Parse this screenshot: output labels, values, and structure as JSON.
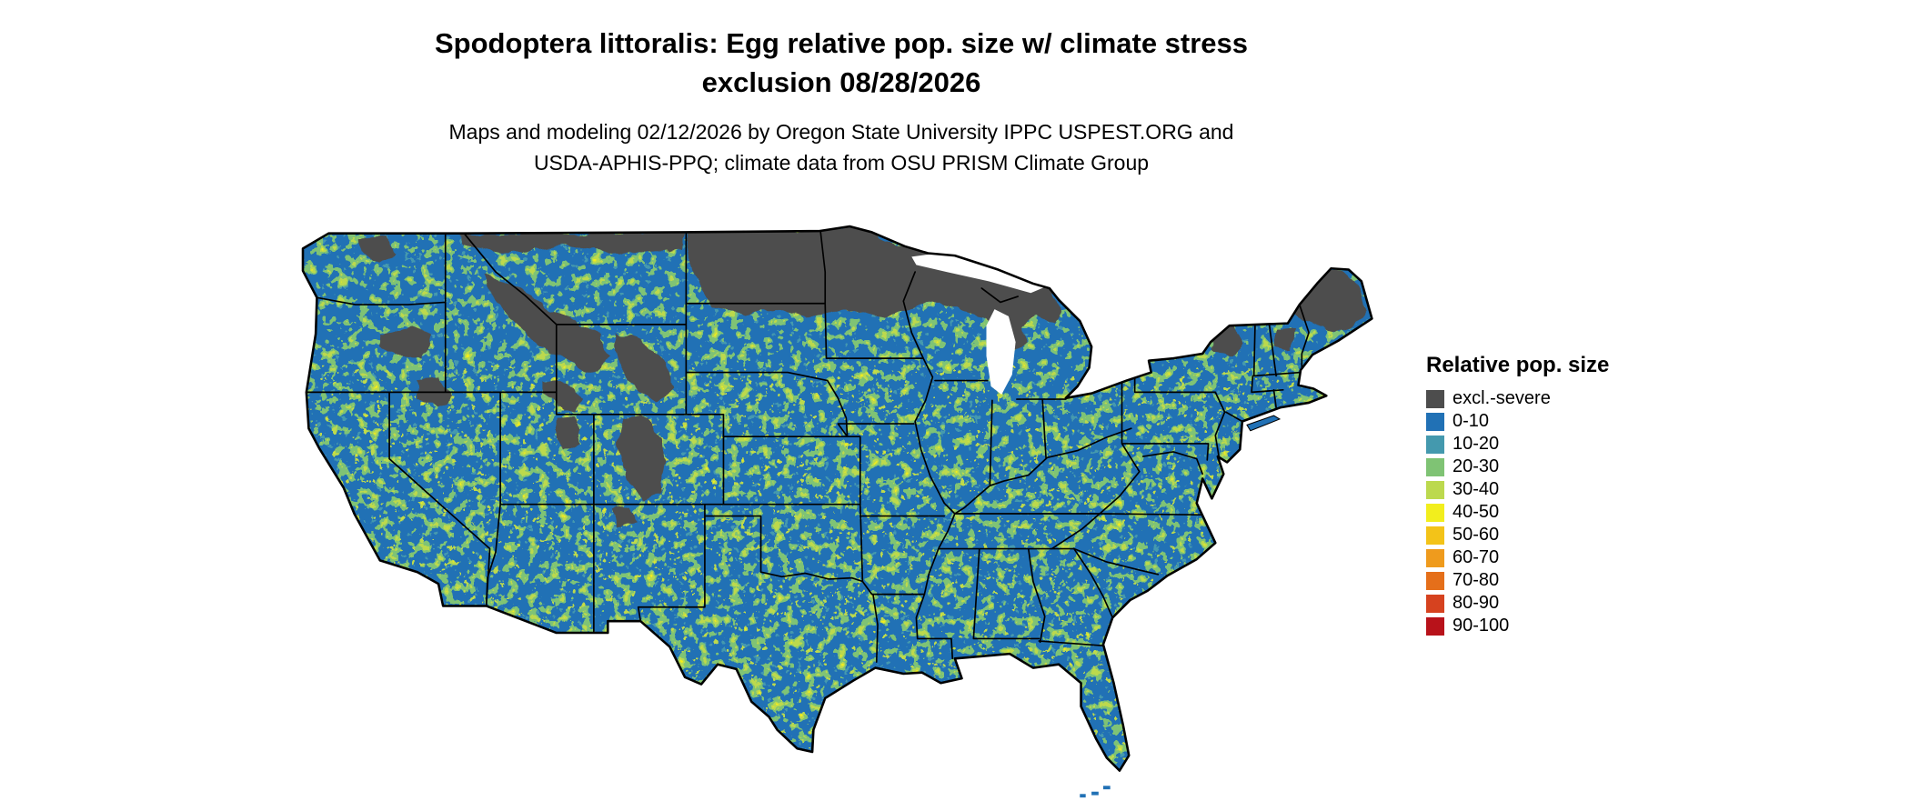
{
  "header": {
    "title_line1": "Spodoptera littoralis: Egg relative pop. size w/ climate stress",
    "title_line2": "exclusion 08/28/2026",
    "subtitle_line1": "Maps and modeling 02/12/2026 by Oregon State University IPPC USPEST.ORG and",
    "subtitle_line2": "USDA-APHIS-PPQ; climate data from OSU PRISM Climate Group"
  },
  "legend": {
    "title": "Relative pop. size",
    "items": [
      {
        "label": "excl.-severe",
        "color": "#4d4d4d"
      },
      {
        "label": "0-10",
        "color": "#2171b5"
      },
      {
        "label": "10-20",
        "color": "#4499ae"
      },
      {
        "label": "20-30",
        "color": "#7fc374"
      },
      {
        "label": "30-40",
        "color": "#bcd94e"
      },
      {
        "label": "40-50",
        "color": "#f2ee1d"
      },
      {
        "label": "50-60",
        "color": "#f3c318"
      },
      {
        "label": "60-70",
        "color": "#ef9b1d"
      },
      {
        "label": "70-80",
        "color": "#e56f1a"
      },
      {
        "label": "80-90",
        "color": "#d6421f"
      },
      {
        "label": "90-100",
        "color": "#b8121a"
      }
    ]
  },
  "map": {
    "region": "Continental United States",
    "colors": {
      "base": "#2171b5",
      "exclusion": "#4d4d4d",
      "speckle_teal": "#4499ae",
      "speckle_green": "#7fc374",
      "speckle_yellowgreen": "#bcd94e",
      "speckle_yellow": "#f2ee1d",
      "water": "#ffffff",
      "border": "#000000"
    }
  }
}
